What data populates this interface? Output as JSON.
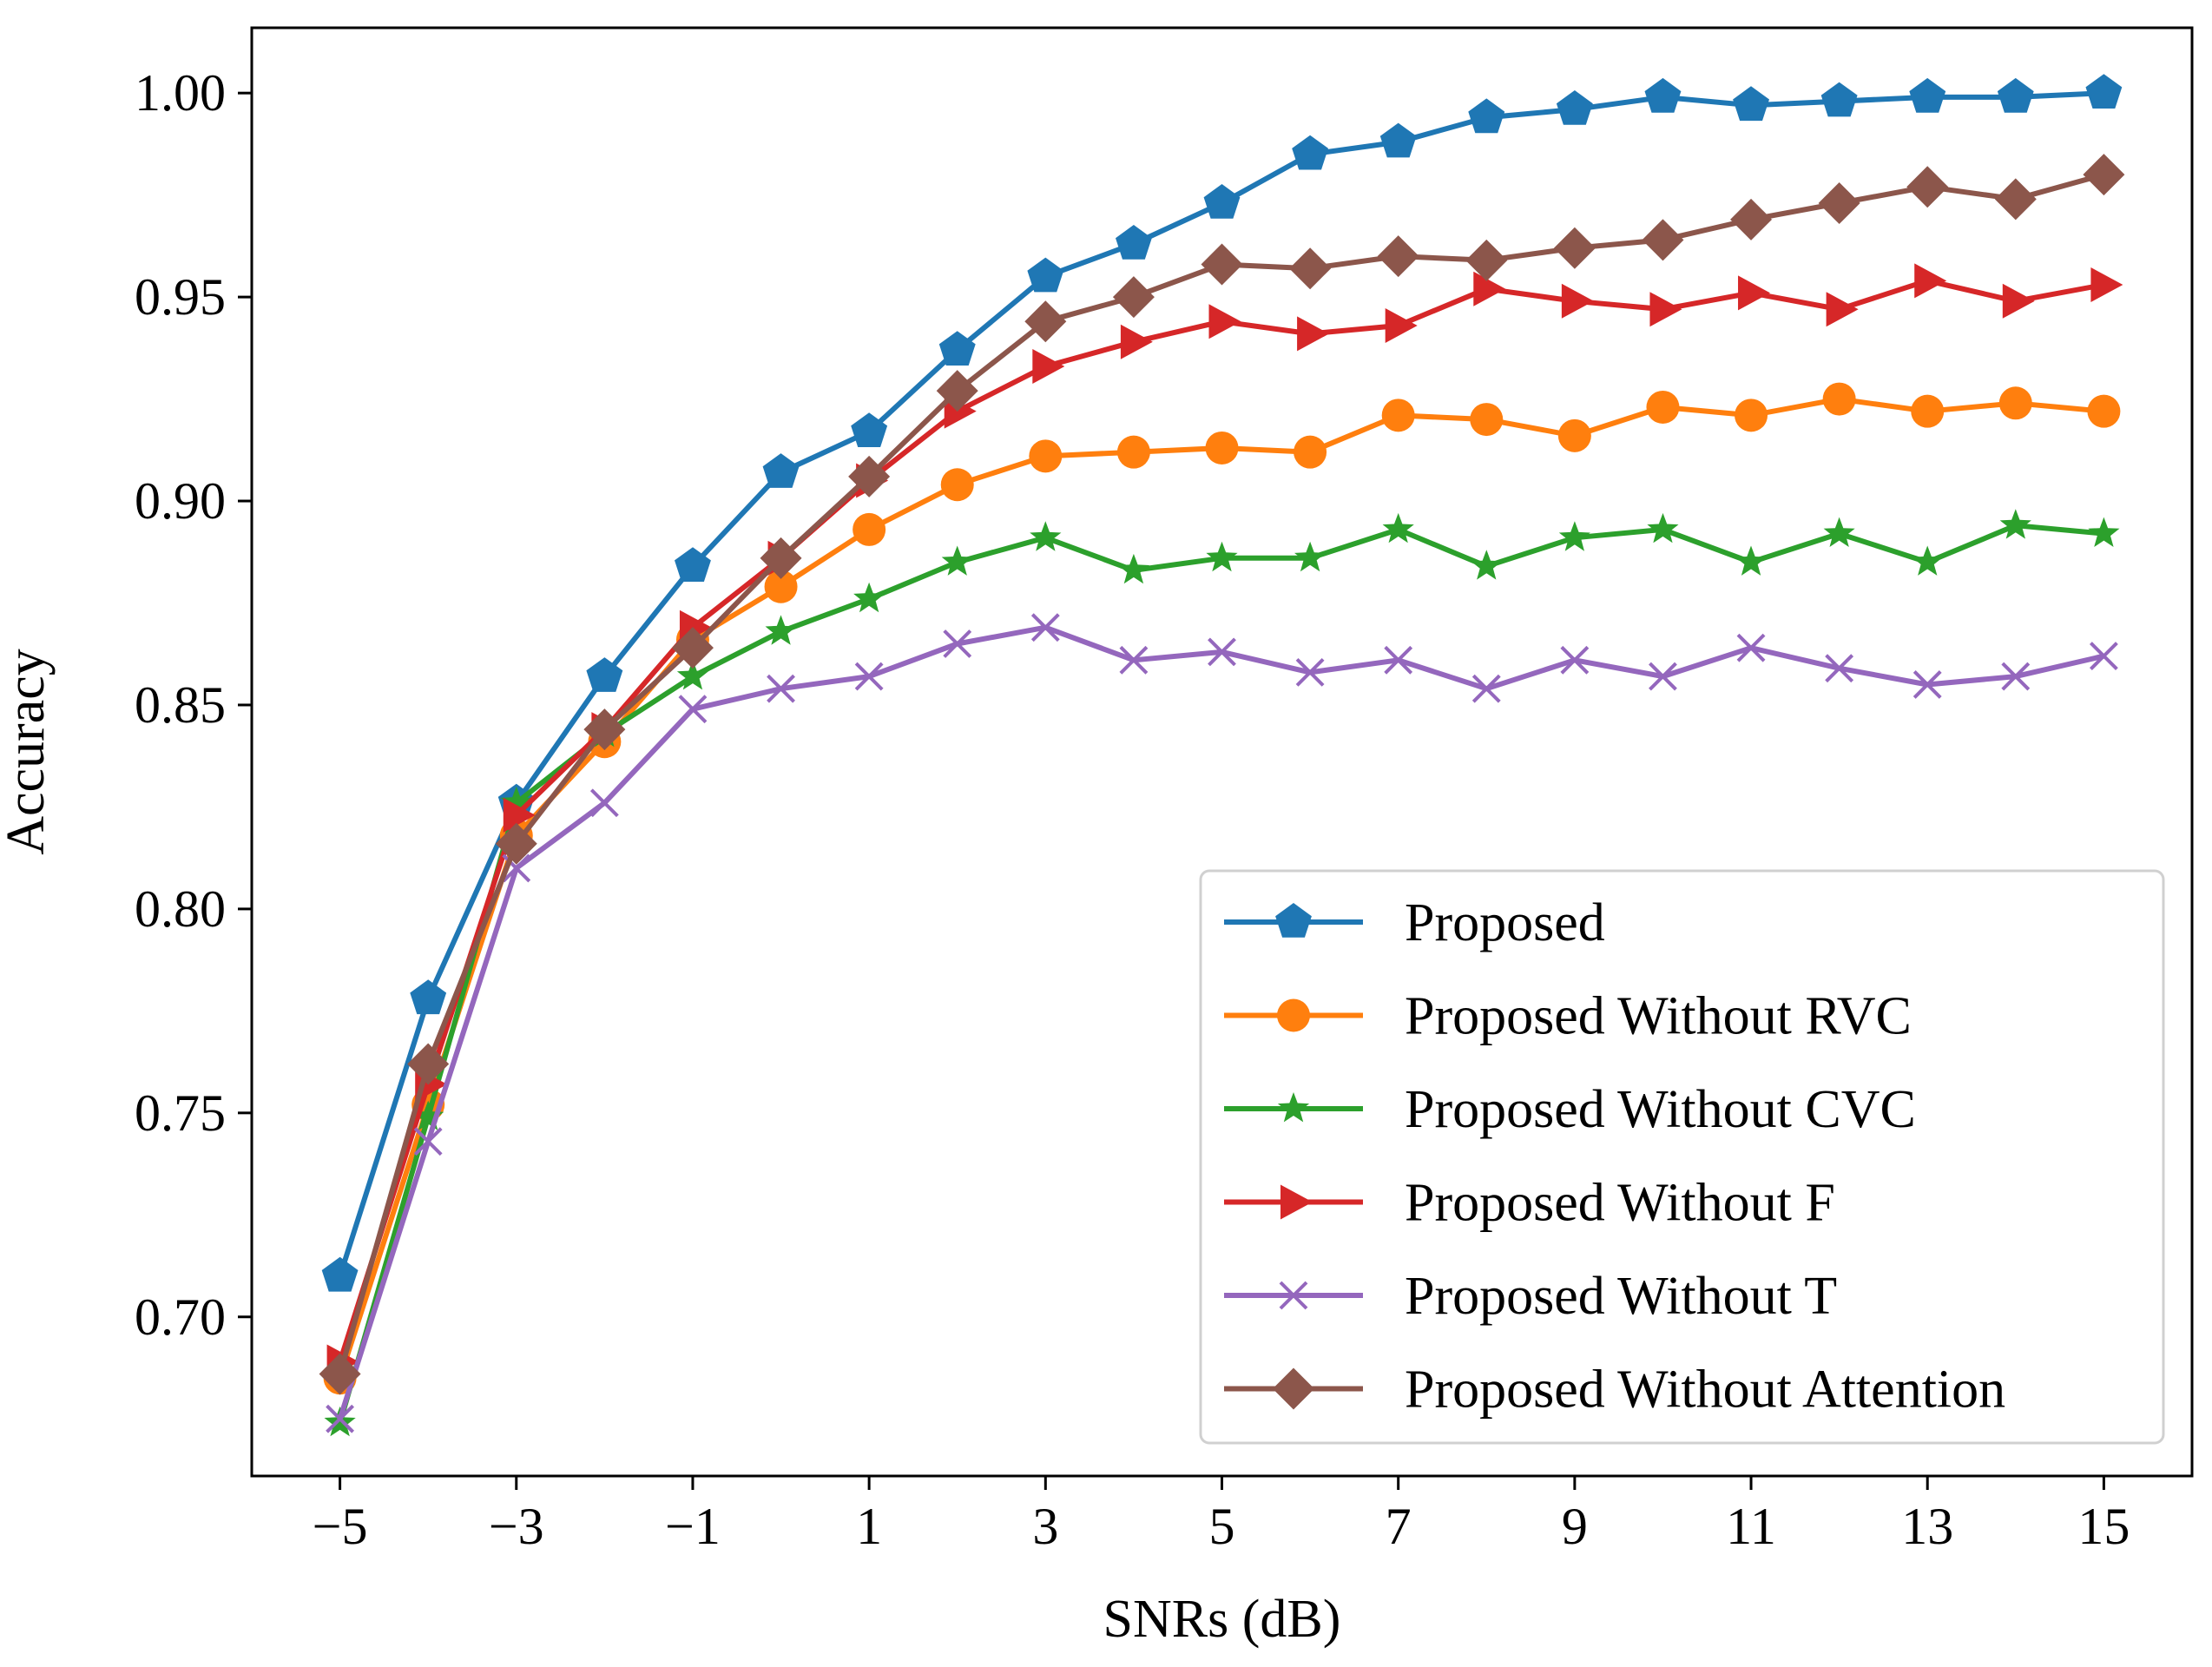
{
  "chart_data": {
    "type": "line",
    "title": "",
    "xlabel": "SNRs (dB)",
    "ylabel": "Accuracy",
    "x": [
      -5,
      -4,
      -3,
      -2,
      -1,
      0,
      1,
      2,
      3,
      4,
      5,
      6,
      7,
      8,
      9,
      10,
      11,
      12,
      13,
      14,
      15
    ],
    "xlim": [
      -6,
      16
    ],
    "ylim": [
      0.661,
      1.016
    ],
    "xticks": [
      -5,
      -3,
      -1,
      1,
      3,
      5,
      7,
      9,
      11,
      13,
      15
    ],
    "xtick_labels": [
      "−5",
      "−3",
      "−1",
      "1",
      "3",
      "5",
      "7",
      "9",
      "11",
      "13",
      "15"
    ],
    "yticks": [
      0.7,
      0.75,
      0.8,
      0.85,
      0.9,
      0.95,
      1.0
    ],
    "ytick_labels": [
      "0.70",
      "0.75",
      "0.80",
      "0.85",
      "0.90",
      "0.95",
      "1.00"
    ],
    "grid": false,
    "legend_position": "bottom-right",
    "series": [
      {
        "name": "Proposed",
        "color": "#1f77b4",
        "marker": "pentagon",
        "values": [
          0.71,
          0.778,
          0.826,
          0.857,
          0.884,
          0.907,
          0.917,
          0.937,
          0.955,
          0.963,
          0.973,
          0.985,
          0.988,
          0.994,
          0.996,
          0.999,
          0.997,
          0.998,
          0.999,
          0.999,
          1.0
        ]
      },
      {
        "name": "Proposed Without RVC",
        "color": "#ff7f0e",
        "marker": "circle",
        "values": [
          0.685,
          0.752,
          0.818,
          0.841,
          0.866,
          0.879,
          0.893,
          0.904,
          0.911,
          0.912,
          0.913,
          0.912,
          0.921,
          0.92,
          0.916,
          0.923,
          0.921,
          0.925,
          0.922,
          0.924,
          0.922
        ]
      },
      {
        "name": "Proposed Without CVC",
        "color": "#2ca02c",
        "marker": "star",
        "values": [
          0.674,
          0.749,
          0.826,
          0.843,
          0.857,
          0.868,
          0.876,
          0.885,
          0.891,
          0.883,
          0.886,
          0.886,
          0.893,
          0.884,
          0.891,
          0.893,
          0.885,
          0.892,
          0.885,
          0.894,
          0.892
        ]
      },
      {
        "name": "Proposed Without F",
        "color": "#d62728",
        "marker": "triangle-right",
        "values": [
          0.689,
          0.757,
          0.823,
          0.844,
          0.869,
          0.886,
          0.905,
          0.922,
          0.933,
          0.939,
          0.944,
          0.941,
          0.943,
          0.952,
          0.949,
          0.947,
          0.951,
          0.947,
          0.954,
          0.949,
          0.953
        ]
      },
      {
        "name": "Proposed Without T",
        "color": "#9467bd",
        "marker": "x",
        "values": [
          0.675,
          0.743,
          0.81,
          0.826,
          0.849,
          0.854,
          0.857,
          0.865,
          0.869,
          0.861,
          0.863,
          0.858,
          0.861,
          0.854,
          0.861,
          0.857,
          0.864,
          0.859,
          0.855,
          0.857,
          0.862
        ]
      },
      {
        "name": "Proposed Without Attention",
        "color": "#8c564b",
        "marker": "diamond",
        "values": [
          0.686,
          0.762,
          0.816,
          0.844,
          0.864,
          0.886,
          0.906,
          0.927,
          0.944,
          0.95,
          0.958,
          0.957,
          0.96,
          0.959,
          0.962,
          0.964,
          0.969,
          0.973,
          0.977,
          0.974,
          0.98
        ]
      }
    ]
  }
}
